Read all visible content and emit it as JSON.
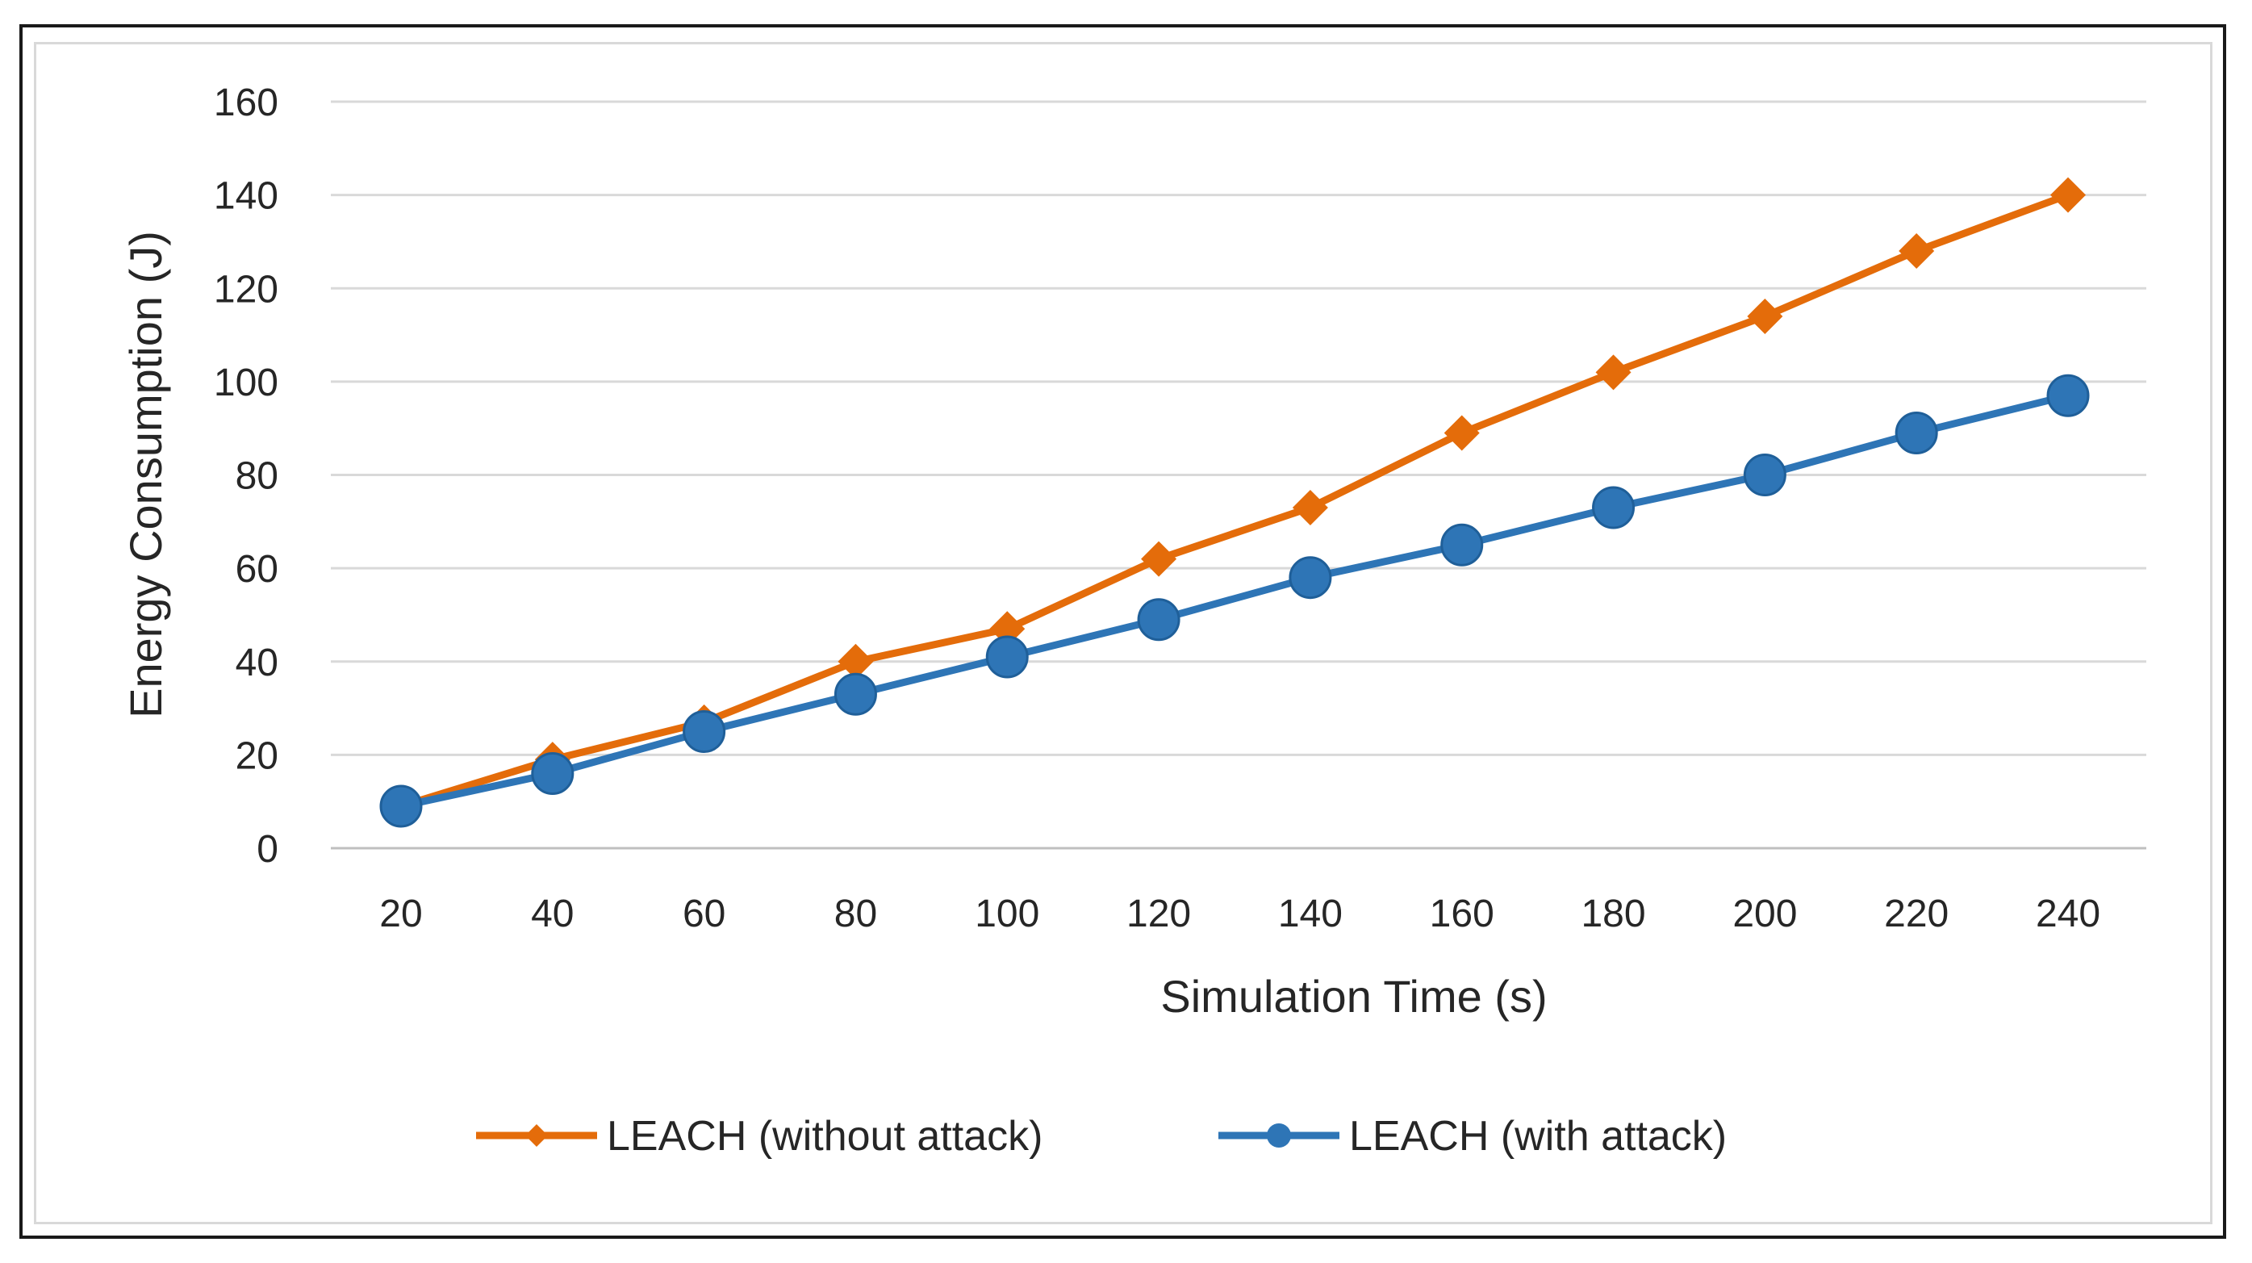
{
  "chart_data": {
    "type": "line",
    "title": "",
    "xlabel": "Simulation Time (s)",
    "ylabel": "Energy Consumption (J)",
    "x": [
      20,
      40,
      60,
      80,
      100,
      120,
      140,
      160,
      180,
      200,
      220,
      240
    ],
    "x_tick_labels": [
      "20",
      "40",
      "60",
      "80",
      "100",
      "120",
      "140",
      "160",
      "180",
      "200",
      "220",
      "240"
    ],
    "ylim": [
      0,
      160
    ],
    "y_ticks": [
      0,
      20,
      40,
      60,
      80,
      100,
      120,
      140,
      160
    ],
    "y_tick_labels": [
      "0",
      "20",
      "40",
      "60",
      "80",
      "100",
      "120",
      "140",
      "160"
    ],
    "grid": "horizontal",
    "legend_position": "bottom",
    "series": [
      {
        "name": "LEACH (without attack)",
        "color": "#E46C0A",
        "marker": "diamond",
        "values": [
          9,
          19,
          27,
          40,
          47,
          62,
          73,
          89,
          102,
          114,
          128,
          140
        ]
      },
      {
        "name": "LEACH (with attack)",
        "color": "#2E75B6",
        "marker": "circle",
        "values": [
          9,
          16,
          25,
          33,
          41,
          49,
          58,
          65,
          73,
          80,
          89,
          97
        ]
      }
    ]
  }
}
